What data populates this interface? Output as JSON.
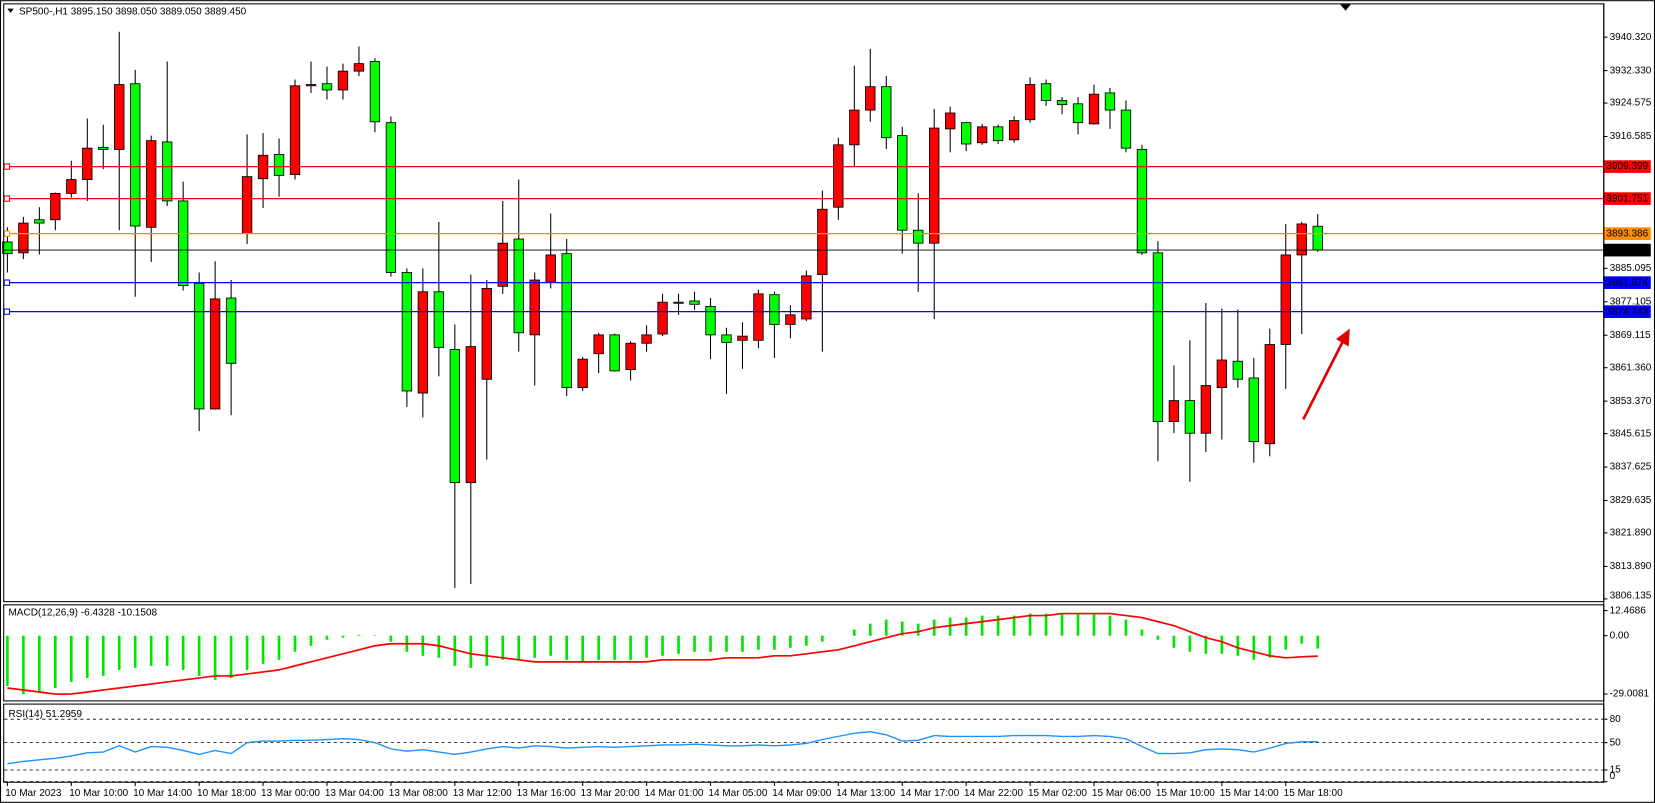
{
  "chart_data": [
    {
      "type": "candlestick",
      "title": "SP500-,H1  3895.150 3898.050 3889.050 3889.450",
      "categories": [
        "10 Mar 2023",
        null,
        null,
        null,
        "10 Mar 10:00",
        null,
        null,
        null,
        "10 Mar 14:00",
        null,
        null,
        null,
        "10 Mar 18:00",
        null,
        null,
        null,
        "13 Mar 00:00",
        null,
        null,
        null,
        "13 Mar 04:00",
        null,
        null,
        null,
        "13 Mar 08:00",
        null,
        null,
        null,
        "13 Mar 12:00",
        null,
        null,
        null,
        "13 Mar 16:00",
        null,
        null,
        null,
        "13 Mar 20:00",
        null,
        null,
        null,
        "14 Mar 01:00",
        null,
        null,
        null,
        "14 Mar 05:00",
        null,
        null,
        null,
        "14 Mar 09:00",
        null,
        null,
        null,
        "14 Mar 13:00",
        null,
        null,
        null,
        "14 Mar 17:00",
        null,
        null,
        null,
        "14 Mar 22:00",
        null,
        null,
        null,
        "15 Mar 02:00",
        null,
        null,
        null,
        "15 Mar 06:00",
        null,
        null,
        null,
        "15 Mar 10:00",
        null,
        null,
        null,
        "15 Mar 14:00",
        null,
        null,
        null,
        "15 Mar 18:00",
        null,
        null
      ],
      "open": [
        3891.4,
        3888.8,
        3896.7,
        3896.7,
        3903.0,
        3906.3,
        3914.0,
        3913.5,
        3929.2,
        3894.9,
        3915.3,
        3901.2,
        3881.5,
        3851.5,
        3878.0,
        3893.4,
        3906.5,
        3912.3,
        3907.5,
        3928.7,
        3929.2,
        3927.7,
        3932.2,
        3934.5,
        3919.9,
        3884.1,
        3855.3,
        3879.5,
        3865.7,
        3833.9,
        3858.6,
        3880.8,
        3892.1,
        3869.2,
        3881.8,
        3888.6,
        3856.6,
        3864.7,
        3869.2,
        3860.9,
        3867.2,
        3869.4,
        3876.8,
        3877.3,
        3876.0,
        3869.2,
        3867.9,
        3867.9,
        3878.8,
        3871.7,
        3873.0,
        3883.6,
        3899.7,
        3914.6,
        3922.9,
        3928.5,
        3916.8,
        3894.2,
        3891.1,
        3918.4,
        3919.9,
        3915.1,
        3918.9,
        3915.8,
        3920.6,
        3929.2,
        3925.2,
        3924.4,
        3919.6,
        3927.0,
        3922.9,
        3913.5,
        3888.8,
        3848.5,
        3853.5,
        3845.7,
        3856.6,
        3862.9,
        3858.9,
        3843.2,
        3866.9,
        3888.3,
        3895.15
      ],
      "high": [
        3894.9,
        3897.4,
        3899.7,
        3903.2,
        3910.8,
        3920.9,
        3919.4,
        3941.6,
        3932.5,
        3916.8,
        3934.5,
        3905.8,
        3884.1,
        3886.8,
        3882.3,
        3917.1,
        3917.4,
        3916.1,
        3930.2,
        3934.5,
        3933.3,
        3934.0,
        3938.1,
        3935.3,
        3921.4,
        3885.1,
        3885.1,
        3896.2,
        3871.7,
        3883.6,
        3882.3,
        3901.2,
        3906.3,
        3884.1,
        3898.2,
        3892.1,
        3863.9,
        3869.7,
        3869.5,
        3867.7,
        3871.5,
        3879.0,
        3879.0,
        3879.5,
        3878.0,
        3870.9,
        3872.2,
        3880.0,
        3879.5,
        3876.3,
        3884.6,
        3903.7,
        3916.3,
        3933.5,
        3937.5,
        3931.0,
        3918.9,
        3903.0,
        3923.2,
        3923.7,
        3920.1,
        3919.6,
        3919.4,
        3921.4,
        3930.7,
        3930.2,
        3926.0,
        3926.0,
        3929.0,
        3928.2,
        3925.2,
        3914.6,
        3891.6,
        3861.9,
        3867.9,
        3876.8,
        3875.5,
        3875.2,
        3863.7,
        3870.7,
        3895.7,
        3896.2,
        3898.05
      ],
      "low": [
        3884.1,
        3887.3,
        3888.4,
        3894.2,
        3902.0,
        3901.2,
        3908.8,
        3894.2,
        3878.3,
        3886.6,
        3900.0,
        3879.8,
        3846.2,
        3851.3,
        3850.0,
        3890.9,
        3899.5,
        3902.2,
        3906.3,
        3927.0,
        3925.4,
        3925.4,
        3931.0,
        3917.6,
        3883.1,
        3852.0,
        3849.5,
        3859.3,
        3808.7,
        3809.7,
        3839.4,
        3879.0,
        3865.2,
        3857.1,
        3880.3,
        3854.6,
        3855.8,
        3860.1,
        3860.4,
        3858.3,
        3865.2,
        3868.9,
        3874.0,
        3875.2,
        3863.4,
        3855.1,
        3861.1,
        3866.0,
        3863.7,
        3868.4,
        3872.5,
        3865.2,
        3896.7,
        3909.3,
        3920.1,
        3913.6,
        3888.6,
        3879.5,
        3873.0,
        3912.8,
        3913.1,
        3914.6,
        3914.8,
        3915.1,
        3919.9,
        3923.9,
        3921.9,
        3917.1,
        3919.4,
        3918.4,
        3912.8,
        3888.3,
        3839.0,
        3845.7,
        3834.1,
        3841.2,
        3844.2,
        3856.6,
        3838.7,
        3840.2,
        3856.3,
        3869.4,
        3889.05
      ],
      "close": [
        3888.6,
        3895.9,
        3895.9,
        3903.0,
        3906.3,
        3913.8,
        3913.5,
        3929.0,
        3895.2,
        3915.6,
        3901.2,
        3881.0,
        3851.5,
        3877.8,
        3862.4,
        3907.0,
        3912.1,
        3907.3,
        3928.7,
        3929.0,
        3927.7,
        3932.2,
        3934.0,
        3920.1,
        3884.1,
        3855.8,
        3879.5,
        3866.2,
        3833.9,
        3866.4,
        3880.3,
        3891.1,
        3869.7,
        3882.3,
        3888.3,
        3856.6,
        3863.4,
        3869.2,
        3860.6,
        3867.2,
        3869.2,
        3877.0,
        3877.0,
        3876.5,
        3869.2,
        3867.4,
        3868.9,
        3879.0,
        3871.7,
        3874.0,
        3883.3,
        3899.2,
        3914.6,
        3922.9,
        3928.5,
        3916.3,
        3894.2,
        3891.1,
        3918.6,
        3922.2,
        3914.8,
        3918.9,
        3915.6,
        3920.4,
        3929.0,
        3925.2,
        3924.2,
        3919.9,
        3926.7,
        3922.9,
        3913.8,
        3888.8,
        3848.5,
        3853.5,
        3845.7,
        3857.1,
        3863.2,
        3858.6,
        3843.7,
        3866.9,
        3888.3,
        3895.7,
        3889.45
      ],
      "up_color": "#ff0000",
      "down_color": "#00ff00",
      "ylim": [
        3805.6,
        3948.4
      ],
      "yticks": [
        {
          "value": 3940.32,
          "label": "3940.320"
        },
        {
          "value": 3932.33,
          "label": "3932.330"
        },
        3924.575,
        3916.585,
        3885.095,
        3877.105,
        3869.115,
        {
          "value": 3861.36,
          "label": "3861.360"
        },
        {
          "value": 3853.37,
          "label": "3853.370"
        },
        3845.615,
        3837.625,
        3829.635,
        {
          "value": 3821.89,
          "label": "3821.890"
        },
        {
          "value": 3813.89,
          "label": "3813.890"
        },
        3806.135
      ],
      "levels": [
        {
          "value": 3909.399,
          "color": "#ff0000"
        },
        {
          "value": 3901.751,
          "color": "#ff0000"
        },
        {
          "value": 3893.386,
          "color": "#ff8c00"
        },
        {
          "value": 3881.674,
          "color": "#0000ff"
        },
        {
          "value": 3874.743,
          "color": "#0000ff"
        }
      ],
      "last_price": {
        "value": 3889.45,
        "label": "3889.450"
      }
    },
    {
      "type": "macd",
      "title": "MACD(12,26,9) -6.4328 -10.1508",
      "histogram": [
        -25,
        -29,
        -28,
        -26,
        -23,
        -21,
        -20,
        -17,
        -16,
        -15,
        -15,
        -17,
        -20,
        -22,
        -21,
        -17,
        -14,
        -12,
        -8,
        -5,
        -2,
        -1,
        0.5,
        0.3,
        -3,
        -8,
        -10,
        -11,
        -15,
        -16,
        -15,
        -12,
        -12,
        -11,
        -10,
        -12,
        -13,
        -12,
        -12,
        -12,
        -11,
        -10,
        -9,
        -8,
        -8,
        -8,
        -8,
        -7,
        -7,
        -6,
        -5,
        -3,
        0,
        3,
        6,
        8,
        7,
        6,
        8,
        9,
        9,
        10,
        10,
        10,
        11,
        11,
        11,
        11,
        11,
        10,
        8,
        3,
        -2,
        -6,
        -8,
        -9,
        -9,
        -10,
        -12,
        -11,
        -7,
        -4,
        -6.4328
      ],
      "signal": [
        -26,
        -27,
        -28,
        -29,
        -29,
        -28,
        -27,
        -26,
        -25,
        -24,
        -23,
        -22,
        -21,
        -20,
        -20,
        -19,
        -18,
        -17,
        -15,
        -13,
        -11,
        -9,
        -7,
        -5,
        -4,
        -4,
        -4,
        -5,
        -7,
        -9,
        -10,
        -11,
        -12,
        -13,
        -13,
        -13,
        -13,
        -13,
        -13,
        -13,
        -13,
        -12,
        -12,
        -12,
        -12,
        -11,
        -11,
        -11,
        -10,
        -10,
        -9,
        -8,
        -7,
        -5,
        -3,
        -1,
        1,
        2,
        4,
        5,
        6,
        7,
        8,
        9,
        10,
        10,
        11,
        11,
        11,
        11,
        10,
        9,
        7,
        5,
        2,
        -1,
        -3,
        -6,
        -8,
        -10,
        -11,
        -10.5,
        -10.1508
      ],
      "histogram_color": "#00e600",
      "signal_color": "#ff0000",
      "ylim": [
        -32.16,
        15.62
      ],
      "yticks": [
        12.4686,
        {
          "value": 0,
          "label": "0.00"
        },
        -29.0081
      ]
    },
    {
      "type": "line",
      "title": "RSI(14) 51.2959",
      "values": [
        23,
        26,
        28,
        30,
        33,
        37,
        38,
        46,
        38,
        45,
        44,
        40,
        35,
        40,
        36,
        50,
        52,
        52,
        53,
        53,
        54,
        55,
        54,
        50,
        42,
        39,
        41,
        38,
        35,
        38,
        42,
        45,
        43,
        46,
        45,
        43,
        44,
        45,
        44,
        45,
        46,
        47,
        47,
        48,
        47,
        46,
        46,
        47,
        46,
        47,
        49,
        54,
        58,
        62,
        64,
        60,
        52,
        53,
        59,
        58,
        58,
        58,
        58,
        59,
        59,
        59,
        58,
        58,
        59,
        58,
        55,
        45,
        36,
        36,
        37,
        41,
        42,
        41,
        38,
        43,
        49,
        51,
        51.2959
      ],
      "color": "#1e90ff",
      "ylim": [
        0,
        100
      ],
      "yticks": [
        80,
        50,
        15,
        0
      ],
      "grid": "dashed"
    }
  ]
}
